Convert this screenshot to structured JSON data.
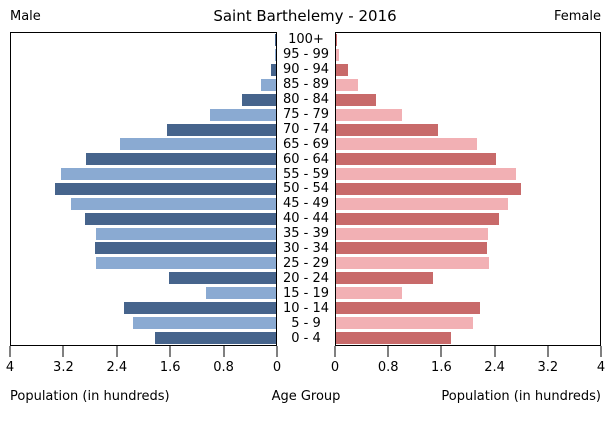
{
  "title": "Saint Barthelemy - 2016",
  "header": {
    "male_label": "Male",
    "female_label": "Female"
  },
  "footer": {
    "left_caption": "Population (in hundreds)",
    "center_caption": "Age Group",
    "right_caption": "Population (in hundreds)"
  },
  "colors": {
    "male_dark": "#46648c",
    "male_light": "#8aaad2",
    "female_dark": "#c86a6a",
    "female_light": "#f2b0b4",
    "axis": "#000000",
    "background": "#ffffff"
  },
  "chart_data": {
    "type": "bar",
    "subtype": "population-pyramid",
    "title": "Saint Barthelemy - 2016",
    "grid": false,
    "categories_top_to_bottom": [
      "100+",
      "95 - 99",
      "90 - 94",
      "85 - 89",
      "80 - 84",
      "75 - 79",
      "70 - 74",
      "65 - 69",
      "60 - 64",
      "55 - 59",
      "50 - 54",
      "45 - 49",
      "40 - 44",
      "35 - 39",
      "30 - 34",
      "25 - 29",
      "20 - 24",
      "15 - 19",
      "10 - 14",
      "5 - 9",
      "0 - 4"
    ],
    "series": [
      {
        "name": "Male",
        "side": "left",
        "values": [
          0.01,
          0.01,
          0.07,
          0.22,
          0.52,
          1.0,
          1.65,
          2.36,
          2.87,
          3.24,
          3.33,
          3.1,
          2.88,
          2.71,
          2.73,
          2.72,
          1.61,
          1.06,
          2.29,
          2.16,
          1.83
        ]
      },
      {
        "name": "Female",
        "side": "right",
        "values": [
          0.02,
          0.05,
          0.18,
          0.33,
          0.61,
          1.0,
          1.55,
          2.14,
          2.43,
          2.73,
          2.8,
          2.6,
          2.47,
          2.31,
          2.29,
          2.32,
          1.47,
          1.0,
          2.18,
          2.07,
          1.74
        ]
      }
    ],
    "x_axis": {
      "label": "Population (in hundreds)",
      "lim": [
        0,
        4
      ],
      "ticks_left": [
        "4",
        "3.2",
        "2.4",
        "1.6",
        "0.8",
        "0"
      ],
      "ticks_right": [
        "0",
        "0.8",
        "1.6",
        "2.4",
        "3.2",
        "4"
      ]
    },
    "y_axis_label": "Age Group",
    "color_pattern": "rows alternate dark/light starting dark at 100+"
  }
}
